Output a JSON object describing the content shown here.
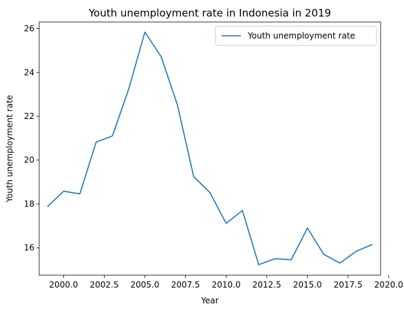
{
  "chart_data": {
    "type": "line",
    "title": "Youth unemployment rate in Indonesia in 2019",
    "xlabel": "Year",
    "ylabel": "Youth unemployment rate",
    "xlim": [
      1998.5,
      2019.5
    ],
    "ylim": [
      14.75,
      26.3
    ],
    "x_ticks": [
      2000.0,
      2002.5,
      2005.0,
      2007.5,
      2010.0,
      2012.5,
      2015.0,
      2017.5,
      2020.0
    ],
    "x_tick_labels": [
      "2000.0",
      "2002.5",
      "2005.0",
      "2007.5",
      "2010.0",
      "2012.5",
      "2015.0",
      "2017.5",
      "2020.0"
    ],
    "y_ticks": [
      16,
      18,
      20,
      22,
      24,
      26
    ],
    "y_tick_labels": [
      "16",
      "18",
      "20",
      "22",
      "24",
      "26"
    ],
    "grid": false,
    "legend_position": "top-right",
    "series": [
      {
        "name": "Youth unemployment rate",
        "color": "#1f77b4",
        "x": [
          1999,
          2000,
          2001,
          2002,
          2003,
          2004,
          2005,
          2006,
          2007,
          2008,
          2009,
          2010,
          2011,
          2012,
          2013,
          2014,
          2015,
          2016,
          2017,
          2018,
          2019
        ],
        "y": [
          17.87,
          18.58,
          18.46,
          20.82,
          21.1,
          23.23,
          25.84,
          24.72,
          22.52,
          19.25,
          18.52,
          17.11,
          17.7,
          15.23,
          15.5,
          15.45,
          16.9,
          15.7,
          15.3,
          15.84,
          16.15
        ]
      }
    ]
  }
}
